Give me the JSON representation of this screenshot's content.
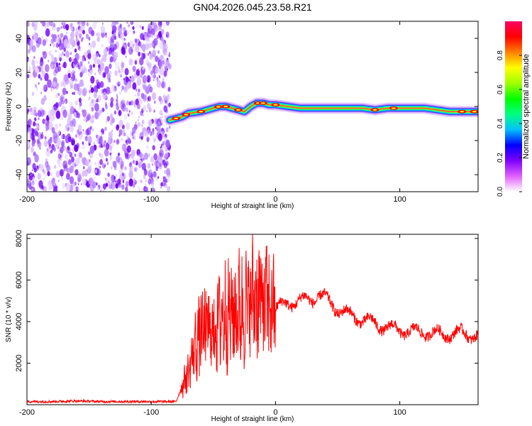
{
  "title": "GN04.2026.045.23.58.R21",
  "spectrogram": {
    "type": "heatmap",
    "xlabel": "Height of straight line (km)",
    "ylabel": "Frequency (Hz)",
    "xlim": [
      -200,
      163
    ],
    "ylim": [
      -50,
      50
    ],
    "xticks": [
      "-200",
      "-100",
      "0",
      "100"
    ],
    "yticks": [
      "40",
      "20",
      "0",
      "-20",
      "-40"
    ],
    "noise_region_x": [
      -200,
      -85
    ],
    "signal_onset_x": -85,
    "ridge": {
      "x": [
        -85,
        -80,
        -75,
        -70,
        -60,
        -50,
        -45,
        -40,
        -35,
        -30,
        -25,
        -20,
        -15,
        -10,
        -5,
        0,
        10,
        20,
        40,
        60,
        70,
        80,
        90,
        100,
        120,
        140,
        163
      ],
      "y": [
        -8,
        -7,
        -6,
        -4,
        -3,
        -1,
        0,
        0,
        -1,
        -2,
        -3,
        0,
        2,
        2,
        1,
        1,
        0,
        -1,
        -1,
        -1,
        -1,
        -2,
        -1,
        -1,
        -1,
        -3,
        -3
      ]
    },
    "hot_spots_x": [
      -80,
      -72,
      -60,
      -46,
      -40,
      -30,
      -14,
      -10,
      0,
      80,
      95,
      150,
      160
    ]
  },
  "colorbar": {
    "label": "Normalized spectral amplitude",
    "range": [
      0,
      1
    ],
    "ticks": [
      "0.0",
      "0.2",
      "0.4",
      "0.6",
      "0.8"
    ],
    "colors": [
      "#ffffff",
      "#e060ff",
      "#8000ff",
      "#0000ff",
      "#00c0ff",
      "#00ff80",
      "#00ff00",
      "#a0ff00",
      "#ffff00",
      "#ff8000",
      "#ff0000",
      "#ff0060"
    ]
  },
  "chart_data": {
    "type": "line",
    "title": "",
    "xlabel": "Height of straight line (km)",
    "ylabel": "SNR (10 * v/v)",
    "xlim": [
      -200,
      163
    ],
    "ylim": [
      0,
      8200
    ],
    "xticks": [
      "-200",
      "-100",
      "0",
      "100"
    ],
    "yticks": [
      "8000",
      "6000",
      "4000",
      "2000"
    ],
    "color": "#ff0000",
    "series": [
      {
        "name": "SNR",
        "x": [
          -200,
          -180,
          -160,
          -140,
          -120,
          -100,
          -80,
          -75,
          -70,
          -65,
          -60,
          -55,
          -50,
          -45,
          -40,
          -35,
          -30,
          -25,
          -20,
          -15,
          -10,
          -5,
          0,
          10,
          20,
          30,
          35,
          40,
          50,
          60,
          70,
          80,
          90,
          100,
          110,
          120,
          130,
          140,
          150,
          163
        ],
        "y": [
          150,
          150,
          180,
          150,
          150,
          150,
          150,
          900,
          1600,
          2800,
          3500,
          3600,
          3500,
          4200,
          4400,
          4300,
          4600,
          4600,
          5000,
          5200,
          4900,
          4800,
          4600,
          4900,
          5000,
          5100,
          5300,
          5100,
          4600,
          4300,
          4100,
          3900,
          3700,
          3600,
          3500,
          3500,
          3400,
          3400,
          3450,
          3300
        ]
      }
    ]
  }
}
